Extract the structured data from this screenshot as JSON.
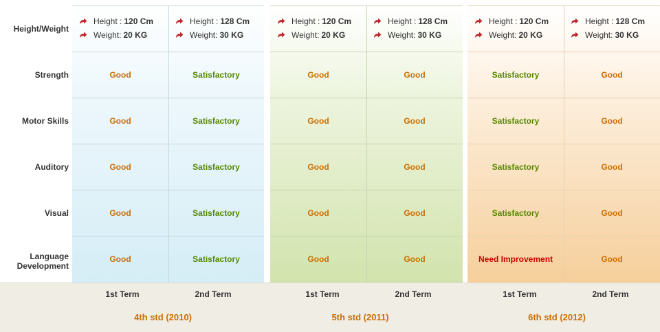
{
  "rows": [
    "Height/Weight",
    "Strength",
    "Motor Skills",
    "Auditory",
    "Visual",
    "Language Development"
  ],
  "hw_labels": {
    "height": "Height :",
    "weight": "Weight:"
  },
  "terms": [
    "1st Term",
    "2nd Term"
  ],
  "groups": [
    {
      "name": "4th std (2010)",
      "terms": [
        {
          "height": "120 Cm",
          "weight": "20 KG",
          "ratings": [
            "Good",
            "Good",
            "Good",
            "Good",
            "Good"
          ]
        },
        {
          "height": "128 Cm",
          "weight": "30 KG",
          "ratings": [
            "Satisfactory",
            "Satisfactory",
            "Satisfactory",
            "Satisfactory",
            "Satisfactory"
          ]
        }
      ]
    },
    {
      "name": "5th std (2011)",
      "terms": [
        {
          "height": "120 Cm",
          "weight": "20 KG",
          "ratings": [
            "Good",
            "Good",
            "Good",
            "Good",
            "Good"
          ]
        },
        {
          "height": "128 Cm",
          "weight": "30 KG",
          "ratings": [
            "Good",
            "Good",
            "Good",
            "Good",
            "Good"
          ]
        }
      ]
    },
    {
      "name": "6th std (2012)",
      "terms": [
        {
          "height": "120 Cm",
          "weight": "20 KG",
          "ratings": [
            "Satisfactory",
            "Satisfactory",
            "Satisfactory",
            "Satisfactory",
            "Need Improvement"
          ]
        },
        {
          "height": "128 Cm",
          "weight": "30 KG",
          "ratings": [
            "Good",
            "Good",
            "Good",
            "Good",
            "Good"
          ]
        }
      ]
    }
  ],
  "colors": {
    "good": "#cc6e00",
    "satisfactory": "#558800",
    "need_improvement": "#cc0000",
    "arrow": "#c0282d"
  },
  "icons": {
    "bullet": "curved-arrow-icon"
  }
}
